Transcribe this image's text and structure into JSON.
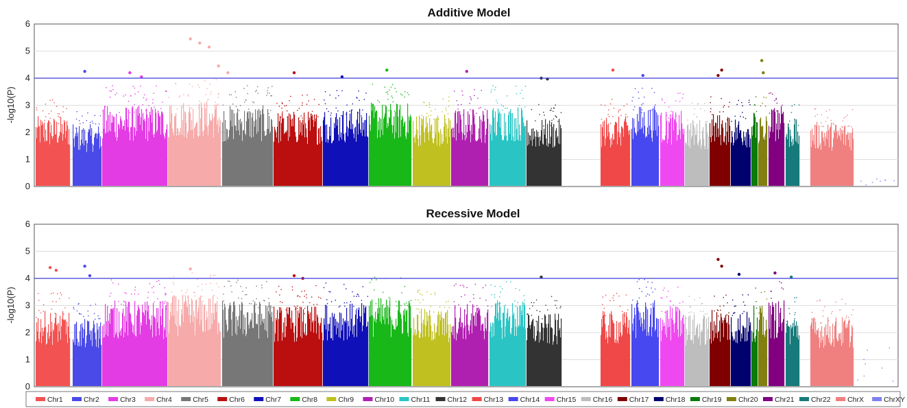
{
  "chart_data": [
    {
      "type": "scatter",
      "title": "Additive Model",
      "xlabel": "",
      "ylabel": "-log10(P)",
      "ylim": [
        0,
        6
      ],
      "yticks": [
        "0",
        "1",
        "2",
        "3",
        "4",
        "5",
        "6"
      ],
      "threshold": 4,
      "grid": true,
      "top_hits": [
        {
          "chr": "Chr2",
          "y": 4.25
        },
        {
          "chr": "Chr3",
          "y": 4.2
        },
        {
          "chr": "Chr3",
          "y": 4.05
        },
        {
          "chr": "Chr4",
          "y": 5.45
        },
        {
          "chr": "Chr4",
          "y": 5.3
        },
        {
          "chr": "Chr4",
          "y": 5.15
        },
        {
          "chr": "Chr4",
          "y": 4.45
        },
        {
          "chr": "Chr4",
          "y": 4.2
        },
        {
          "chr": "Chr6",
          "y": 4.2
        },
        {
          "chr": "Chr7",
          "y": 4.05
        },
        {
          "chr": "Chr8",
          "y": 4.3
        },
        {
          "chr": "Chr10",
          "y": 4.25
        },
        {
          "chr": "Chr12",
          "y": 4.0
        },
        {
          "chr": "Chr12",
          "y": 3.97
        },
        {
          "chr": "Chr13",
          "y": 4.3
        },
        {
          "chr": "Chr14",
          "y": 4.1
        },
        {
          "chr": "Chr17",
          "y": 4.1
        },
        {
          "chr": "Chr17",
          "y": 4.3
        },
        {
          "chr": "Chr20",
          "y": 4.65
        },
        {
          "chr": "Chr20",
          "y": 4.2
        }
      ]
    },
    {
      "type": "scatter",
      "title": "Recessive Model",
      "xlabel": "",
      "ylabel": "-log10(P)",
      "ylim": [
        0,
        6
      ],
      "yticks": [
        "0",
        "1",
        "2",
        "3",
        "4",
        "5",
        "6"
      ],
      "threshold": 4,
      "grid": true,
      "top_hits": [
        {
          "chr": "Chr1",
          "y": 4.4
        },
        {
          "chr": "Chr1",
          "y": 4.3
        },
        {
          "chr": "Chr2",
          "y": 4.45
        },
        {
          "chr": "Chr2",
          "y": 4.1
        },
        {
          "chr": "Chr4",
          "y": 4.35
        },
        {
          "chr": "Chr6",
          "y": 4.1
        },
        {
          "chr": "Chr6",
          "y": 4.0
        },
        {
          "chr": "Chr12",
          "y": 4.05
        },
        {
          "chr": "Chr17",
          "y": 4.7
        },
        {
          "chr": "Chr17",
          "y": 4.45
        },
        {
          "chr": "Chr18",
          "y": 4.15
        },
        {
          "chr": "Chr21",
          "y": 4.2
        },
        {
          "chr": "Chr22",
          "y": 4.05
        }
      ]
    }
  ],
  "chromosomes": [
    {
      "name": "Chr1",
      "color": "#f25252"
    },
    {
      "name": "Chr2",
      "color": "#4a4ae8"
    },
    {
      "name": "Chr3",
      "color": "#e43ce4"
    },
    {
      "name": "Chr4",
      "color": "#f6aaaa"
    },
    {
      "name": "Chr5",
      "color": "#777777"
    },
    {
      "name": "Chr6",
      "color": "#bb0f0f"
    },
    {
      "name": "Chr7",
      "color": "#1010b8"
    },
    {
      "name": "Chr8",
      "color": "#18b818"
    },
    {
      "name": "Chr9",
      "color": "#c0c020"
    },
    {
      "name": "Chr10",
      "color": "#b020b0"
    },
    {
      "name": "Chr11",
      "color": "#2ac4c4"
    },
    {
      "name": "Chr12",
      "color": "#333333"
    },
    {
      "name": "Chr13",
      "color": "#f04848"
    },
    {
      "name": "Chr14",
      "color": "#4848f0"
    },
    {
      "name": "Chr15",
      "color": "#f048f0"
    },
    {
      "name": "Chr16",
      "color": "#bdbdbd"
    },
    {
      "name": "Chr17",
      "color": "#800000"
    },
    {
      "name": "Chr18",
      "color": "#00006e"
    },
    {
      "name": "Chr19",
      "color": "#0a7a0a"
    },
    {
      "name": "Chr20",
      "color": "#808010"
    },
    {
      "name": "Chr21",
      "color": "#800080"
    },
    {
      "name": "Chr22",
      "color": "#167a7a"
    },
    {
      "name": "ChrX",
      "color": "#f08080"
    },
    {
      "name": "ChrXY",
      "color": "#8080f0"
    }
  ],
  "threshold_color": "#3a3ad8"
}
